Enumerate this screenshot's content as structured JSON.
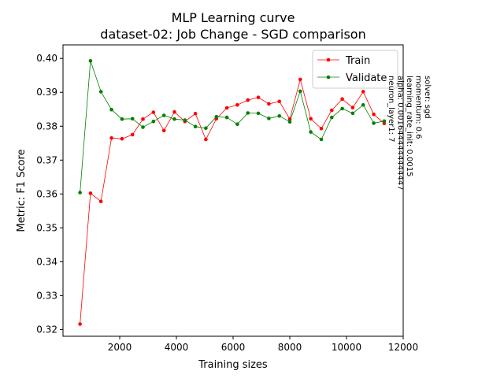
{
  "chart_data": {
    "type": "line",
    "title": "MLP Learning curve",
    "subtitle": "dataset-02: Job Change - SGD comparison",
    "xlabel": "Training sizes",
    "ylabel": "Metric: F1 Score",
    "xlim": [
      0,
      12000
    ],
    "ylim": [
      0.318,
      0.404
    ],
    "xticks": [
      2000,
      4000,
      6000,
      8000,
      10000,
      12000
    ],
    "yticks": [
      0.32,
      0.33,
      0.34,
      0.35,
      0.36,
      0.37,
      0.38,
      0.39,
      0.4
    ],
    "grid": false,
    "legend_position": "top-right",
    "x": [
      600,
      970,
      1340,
      1710,
      2080,
      2450,
      2820,
      3190,
      3560,
      3930,
      4300,
      4670,
      5040,
      5410,
      5780,
      6150,
      6520,
      6890,
      7260,
      7630,
      8000,
      8370,
      8740,
      9110,
      9480,
      9850,
      10220,
      10590,
      10960,
      11330
    ],
    "series": [
      {
        "name": "Train",
        "color": "#ff0000",
        "values": [
          0.3216,
          0.3602,
          0.3578,
          0.3765,
          0.3763,
          0.3775,
          0.3821,
          0.3841,
          0.3787,
          0.3842,
          0.3814,
          0.3837,
          0.3761,
          0.3822,
          0.3854,
          0.3863,
          0.3877,
          0.3885,
          0.3866,
          0.3873,
          0.3821,
          0.3938,
          0.3822,
          0.3793,
          0.3847,
          0.388,
          0.3855,
          0.3902,
          0.3835,
          0.3808
        ]
      },
      {
        "name": "Validate",
        "color": "#008000",
        "values": [
          0.3604,
          0.3993,
          0.3902,
          0.3849,
          0.3821,
          0.3822,
          0.3797,
          0.3814,
          0.3832,
          0.3821,
          0.3818,
          0.3799,
          0.3794,
          0.3828,
          0.3826,
          0.3806,
          0.3839,
          0.3838,
          0.3823,
          0.383,
          0.3813,
          0.3903,
          0.3783,
          0.3761,
          0.3826,
          0.3852,
          0.3838,
          0.3863,
          0.3809,
          0.3815
        ]
      }
    ],
    "annotation": [
      "solver: sgd",
      "momentum: 0.6",
      "learning_rate_init: 0.0015",
      "alpha: 0.0016444444444447",
      "neuron_layer1: 7"
    ]
  }
}
